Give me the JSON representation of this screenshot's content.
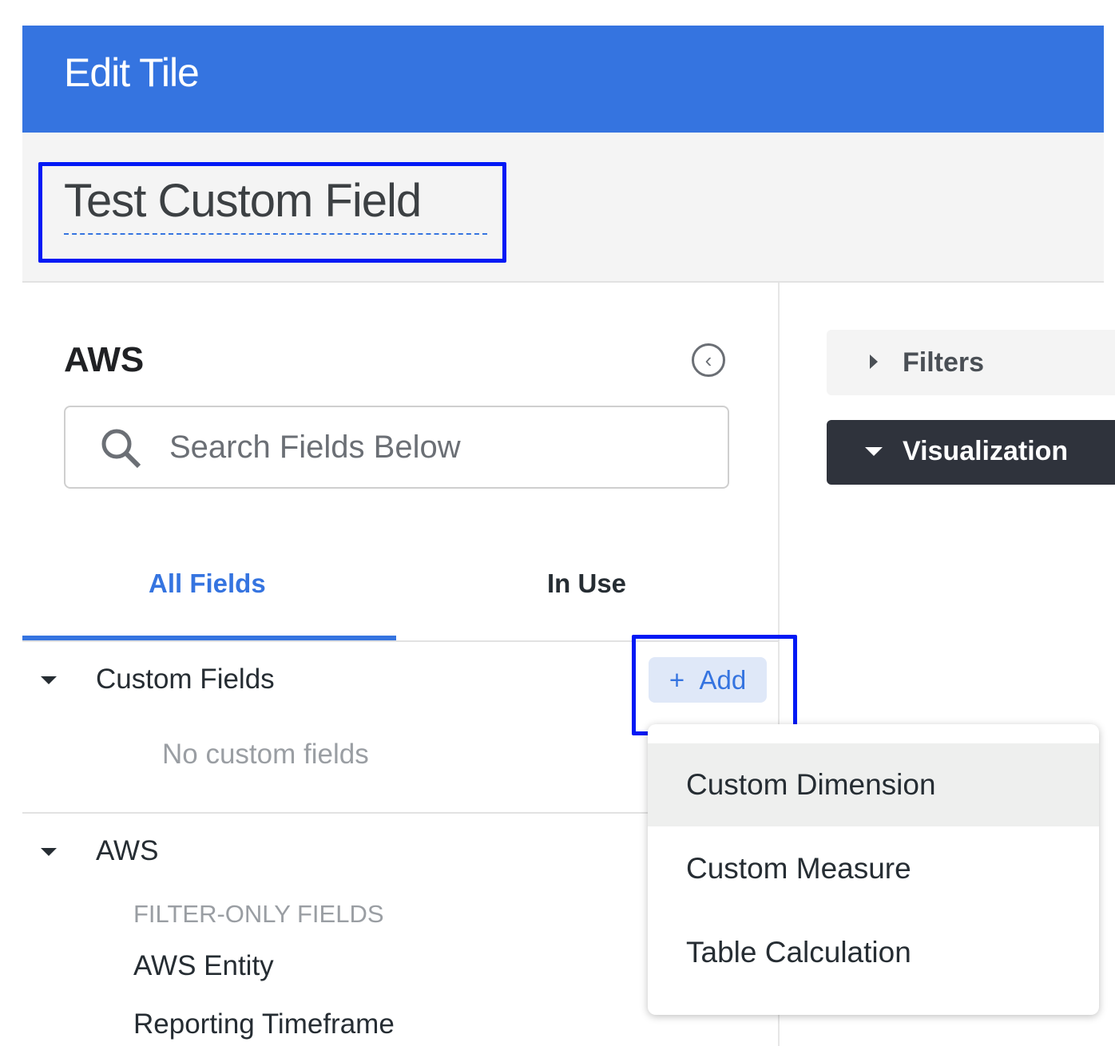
{
  "header": {
    "title": "Edit Tile"
  },
  "tile": {
    "title": "Test Custom Field"
  },
  "panel": {
    "title": "AWS",
    "search_placeholder": "Search Fields Below"
  },
  "tabs": [
    {
      "label": "All Fields",
      "active": true
    },
    {
      "label": "In Use",
      "active": false
    }
  ],
  "custom_fields": {
    "label": "Custom Fields",
    "add_label": "Add",
    "empty_text": "No custom fields"
  },
  "aws_group": {
    "label": "AWS",
    "section": "FILTER-ONLY FIELDS",
    "items": [
      "AWS Entity",
      "Reporting Timeframe"
    ]
  },
  "right": {
    "filters_label": "Filters",
    "visualization_label": "Visualization"
  },
  "add_menu": {
    "items": [
      "Custom Dimension",
      "Custom Measure",
      "Table Calculation"
    ],
    "highlighted": "Custom Dimension"
  },
  "colors": {
    "accent": "#3574e0",
    "highlight_box": "#0019f5",
    "viz_bg": "#2f333c"
  }
}
